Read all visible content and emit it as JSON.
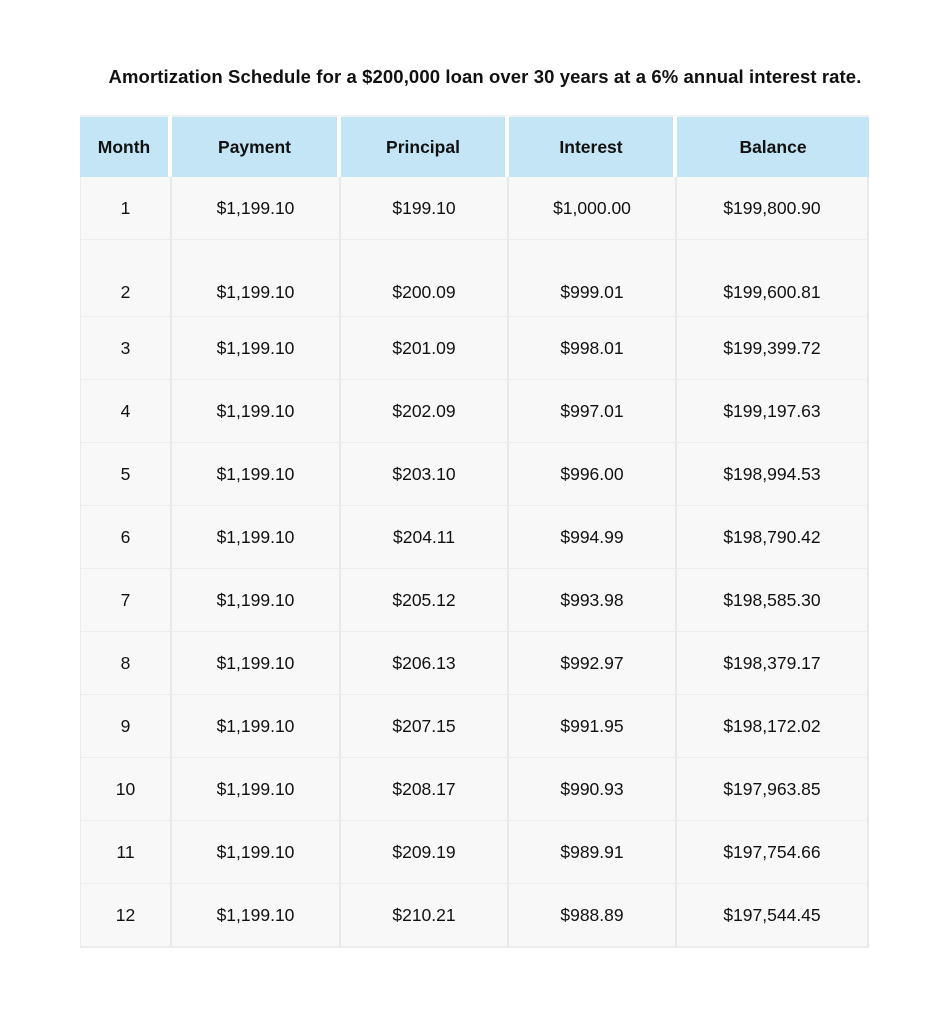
{
  "title": "Amortization Schedule for a $200,000 loan over 30 years at a 6% annual interest rate.",
  "columns": [
    "Month",
    "Payment",
    "Principal",
    "Interest",
    "Balance"
  ],
  "rows": [
    [
      "1",
      "$1,199.10",
      "$199.10",
      "$1,000.00",
      "$199,800.90"
    ],
    [
      "2",
      "$1,199.10",
      "$200.09",
      "$999.01",
      "$199,600.81"
    ],
    [
      "3",
      "$1,199.10",
      "$201.09",
      "$998.01",
      "$199,399.72"
    ],
    [
      "4",
      "$1,199.10",
      "$202.09",
      "$997.01",
      "$199,197.63"
    ],
    [
      "5",
      "$1,199.10",
      "$203.10",
      "$996.00",
      "$198,994.53"
    ],
    [
      "6",
      "$1,199.10",
      "$204.11",
      "$994.99",
      "$198,790.42"
    ],
    [
      "7",
      "$1,199.10",
      "$205.12",
      "$993.98",
      "$198,585.30"
    ],
    [
      "8",
      "$1,199.10",
      "$206.13",
      "$992.97",
      "$198,379.17"
    ],
    [
      "9",
      "$1,199.10",
      "$207.15",
      "$991.95",
      "$198,172.02"
    ],
    [
      "10",
      "$1,199.10",
      "$208.17",
      "$990.93",
      "$197,963.85"
    ],
    [
      "11",
      "$1,199.10",
      "$209.19",
      "$989.91",
      "$197,754.66"
    ],
    [
      "12",
      "$1,199.10",
      "$210.21",
      "$988.89",
      "$197,544.45"
    ]
  ],
  "colors": {
    "header_background": "#c3e5f5",
    "cell_background": "#f8f8f8",
    "text": "#111111"
  }
}
